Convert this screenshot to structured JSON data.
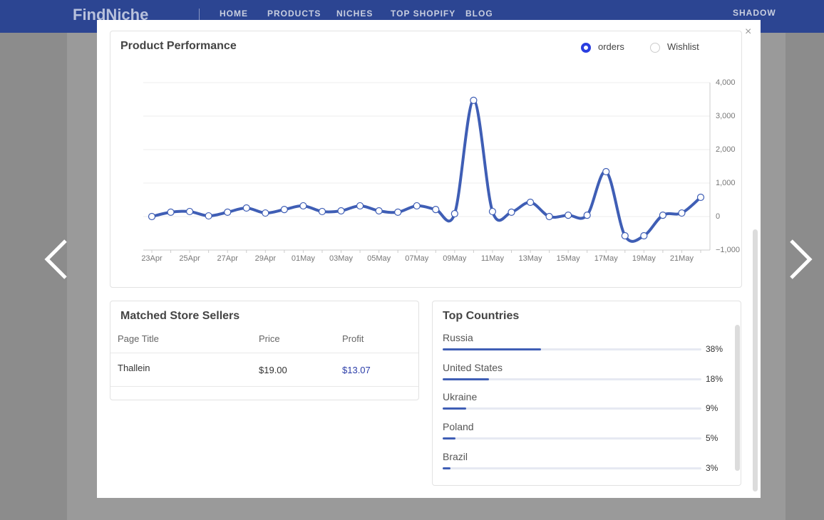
{
  "nav": {
    "logo": "FindNiche",
    "links": [
      "HOME",
      "PRODUCTS",
      "NICHES",
      "TOP SHOPIFY",
      "BLOG"
    ],
    "user": "SHADOW"
  },
  "performance": {
    "title": "Product Performance",
    "options": [
      "orders",
      "Wishlist"
    ],
    "selected": 0
  },
  "chart_data": {
    "type": "line",
    "categories": [
      "23Apr",
      null,
      "25Apr",
      null,
      "27Apr",
      null,
      "29Apr",
      null,
      "01May",
      null,
      "03May",
      null,
      "05May",
      null,
      "07May",
      null,
      "09May",
      null,
      "11May",
      null,
      "13May",
      null,
      "15May",
      null,
      "17May",
      null,
      "19May",
      null,
      "21May",
      null
    ],
    "values": [
      0,
      130,
      150,
      20,
      130,
      255,
      105,
      210,
      320,
      150,
      170,
      320,
      170,
      130,
      320,
      210,
      85,
      3470,
      150,
      130,
      425,
      0,
      40,
      40,
      1340,
      -575,
      -575,
      40,
      105,
      575
    ],
    "color": "#3f5eb5",
    "ylim": [
      -1000,
      4000
    ],
    "yticks": [
      {
        "value": 4000,
        "label": "4,000"
      },
      {
        "value": 3000,
        "label": "3,000"
      },
      {
        "value": 2000,
        "label": "2,000"
      },
      {
        "value": 1000,
        "label": "1,000"
      },
      0,
      {
        "value": -1000,
        "label": "−1,000"
      }
    ],
    "grid": true
  },
  "sellers": {
    "title": "Matched Store Sellers",
    "headers": [
      "Page Title",
      "Price",
      "Profit"
    ],
    "rows": [
      [
        "Thallein",
        "$19.00",
        "$13.07"
      ]
    ]
  },
  "countries": {
    "title": "Top Countries",
    "names": [
      "Russia",
      "United States",
      "Ukraine",
      "Poland",
      "Brazil"
    ],
    "values": [
      38,
      18,
      9,
      5,
      3
    ],
    "value_labels": [
      "38%",
      "18%",
      "9%",
      "5%",
      "3%"
    ],
    "xlim": [
      0,
      100
    ],
    "color": "#3f5eb5"
  }
}
